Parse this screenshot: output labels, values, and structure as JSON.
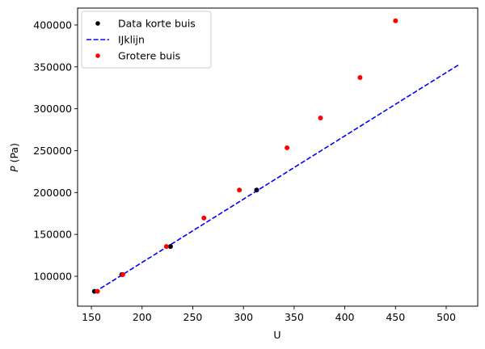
{
  "chart_data": {
    "type": "scatter",
    "title": "",
    "xlabel": "U",
    "ylabel_italic": "P",
    "ylabel_unit": " (Pa)",
    "ylabel": "P (Pa)",
    "xlim": [
      136.4,
      531.1
    ],
    "ylim": [
      64300,
      420200
    ],
    "xticks": [
      150,
      200,
      250,
      300,
      350,
      400,
      450,
      500
    ],
    "yticks": [
      100000,
      150000,
      200000,
      250000,
      300000,
      350000,
      400000
    ],
    "grid": false,
    "legend_position": "upper left",
    "series": [
      {
        "name": "Data korte buis",
        "kind": "scatter",
        "color": "#000000",
        "x": [
          153,
          180,
          228,
          313
        ],
        "y": [
          82000,
          102000,
          135500,
          203000
        ]
      },
      {
        "name": "IJklijn",
        "kind": "line",
        "style": "dashed",
        "color": "#0000ff",
        "x": [
          153,
          513
        ],
        "y": [
          81000,
          353000
        ]
      },
      {
        "name": "Grotere buis",
        "kind": "scatter",
        "color": "#ff0000",
        "x": [
          156,
          181,
          224,
          261,
          296,
          343,
          376,
          415,
          450
        ],
        "y": [
          82000,
          102000,
          135500,
          169500,
          203000,
          253400,
          289000,
          337300,
          405000
        ]
      }
    ]
  }
}
